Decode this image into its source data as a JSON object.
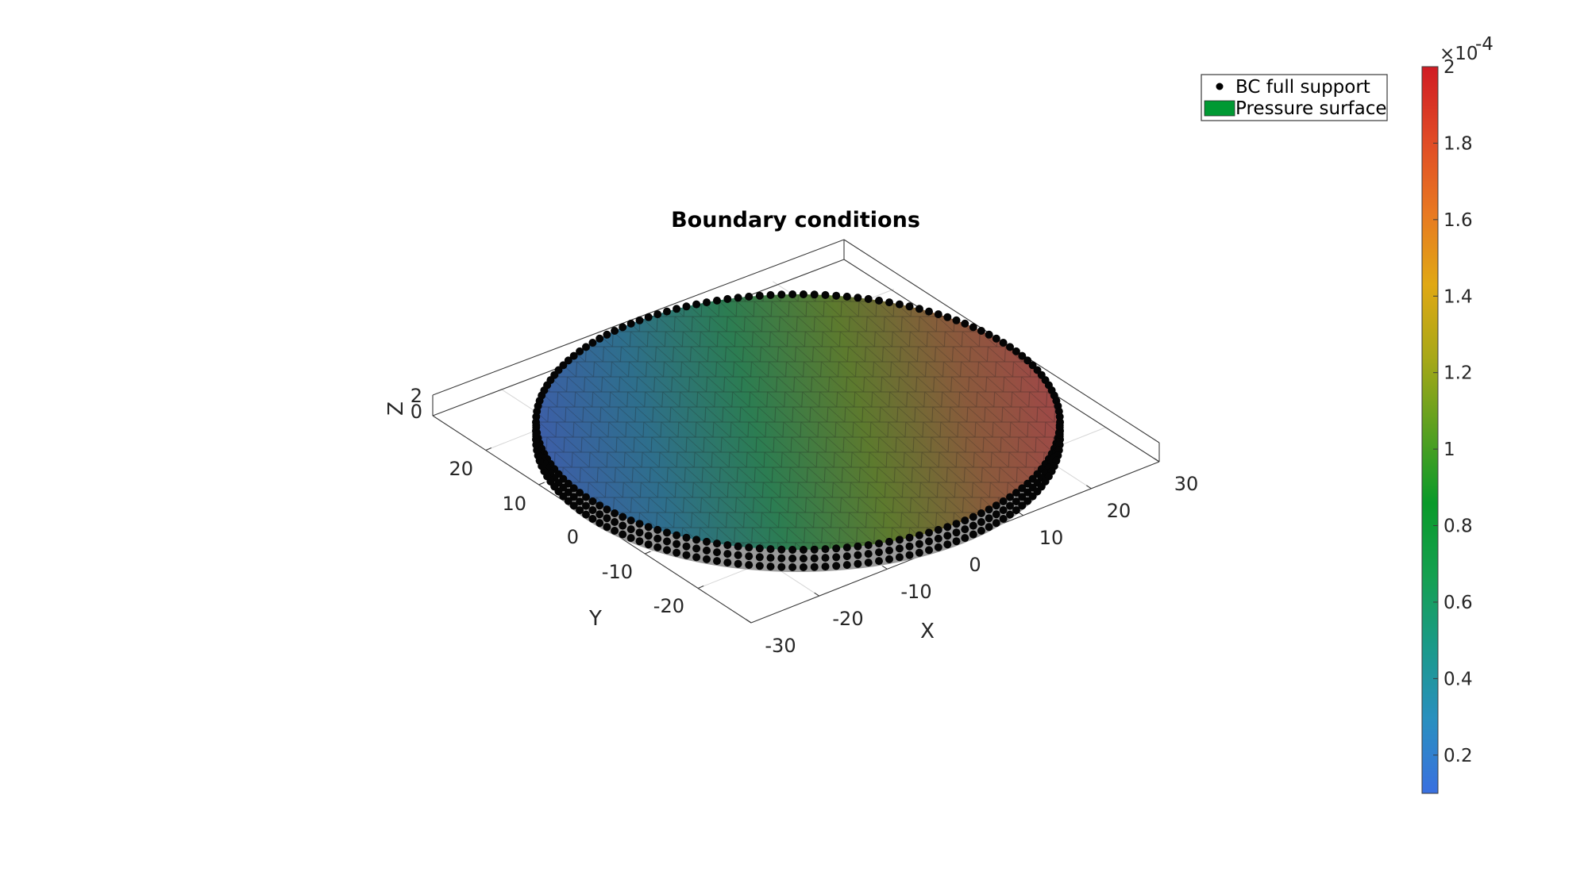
{
  "chart_data": {
    "type": "surface",
    "title": "Boundary conditions",
    "xlabel": "X",
    "ylabel": "Y",
    "zlabel": "Z",
    "x_ticks": [
      "-30",
      "-20",
      "-10",
      "0",
      "10",
      "20",
      "30"
    ],
    "y_ticks": [
      "-20",
      "-10",
      "0",
      "10",
      "20"
    ],
    "z_ticks": [
      "0",
      "2"
    ],
    "xlim": [
      -30,
      30
    ],
    "ylim": [
      -30,
      30
    ],
    "zlim": [
      0,
      2
    ],
    "grid": true,
    "disc": {
      "radius": 30,
      "z_bottom": 0,
      "z_top": 2
    },
    "legend": {
      "placement": "top-right",
      "entries": [
        {
          "label": "BC full support",
          "marker": "dot",
          "color": "#000000"
        },
        {
          "label": "Pressure surface",
          "marker": "patch",
          "color": "#009933"
        }
      ]
    },
    "colorbar": {
      "exponent_label": "×10",
      "exponent": "-4",
      "range": [
        0.1,
        2
      ],
      "ticks": [
        "0.2",
        "0.4",
        "0.6",
        "0.8",
        "1",
        "1.2",
        "1.4",
        "1.6",
        "1.8",
        "2"
      ],
      "tick_values": [
        0.2,
        0.4,
        0.6,
        0.8,
        1.0,
        1.2,
        1.4,
        1.6,
        1.8,
        2.0
      ],
      "colormap": [
        "#3a70e0",
        "#2a8fc0",
        "#1b9a8a",
        "#15a050",
        "#0a9a2a",
        "#5aa020",
        "#a8a818",
        "#e0a814",
        "#e87822",
        "#e04a26",
        "#d01c24"
      ]
    },
    "surface_gradient": {
      "colors": [
        "#3d5ea8",
        "#2e6f8c",
        "#2c7d52",
        "#5d7a2e",
        "#8a5a3c",
        "#a4444a"
      ]
    }
  }
}
